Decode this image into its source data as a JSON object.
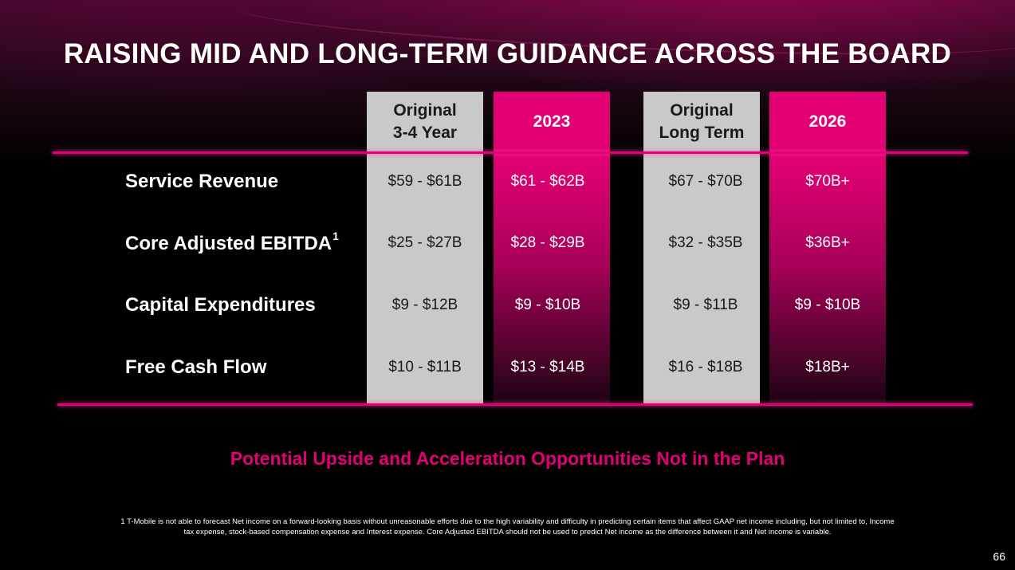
{
  "title": "RAISING MID AND LONG-TERM GUIDANCE ACROSS THE BOARD",
  "colors": {
    "magenta": "#e20074",
    "grey_column": "#c9c9c9",
    "background": "#000000"
  },
  "columns": [
    {
      "label": "Original\n3-4 Year",
      "style": "grey"
    },
    {
      "label": "2023",
      "style": "pink"
    },
    {
      "label": "Original\nLong Term",
      "style": "grey"
    },
    {
      "label": "2026",
      "style": "pink"
    }
  ],
  "rows": [
    {
      "label": "Service Revenue",
      "sup": "",
      "values": [
        "$59 - $61B",
        "$61 - $62B",
        "$67 - $70B",
        "$70B+"
      ]
    },
    {
      "label": "Core Adjusted EBITDA",
      "sup": "1",
      "values": [
        "$25 - $27B",
        "$28 - $29B",
        "$32 - $35B",
        "$36B+"
      ]
    },
    {
      "label": "Capital Expenditures",
      "sup": "",
      "values": [
        "$9 - $12B",
        "$9 - $10B",
        "$9 - $11B",
        "$9 - $10B"
      ]
    },
    {
      "label": "Free Cash Flow",
      "sup": "",
      "values": [
        "$10 - $11B",
        "$13 - $14B",
        "$16 - $18B",
        "$18B+"
      ]
    }
  ],
  "upside_text": "Potential Upside and Acceleration Opportunities Not in the Plan",
  "footnote": "1 T-Mobile is not able to forecast Net income on a forward-looking basis without unreasonable efforts due to the high variability and difficulty in predicting certain items that affect GAAP net income including, but not limited to, Income tax expense, stock-based compensation expense and Interest expense. Core Adjusted EBITDA should not be used to predict Net income as the difference between it and Net income is variable.",
  "page_number": "66"
}
